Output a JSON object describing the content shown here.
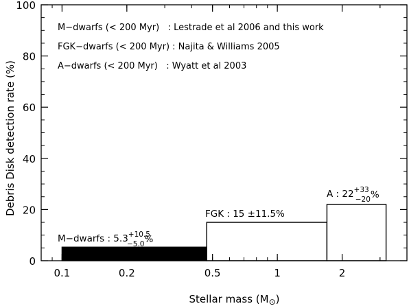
{
  "chart_data": {
    "type": "bar",
    "x_scale": "log",
    "xlim": [
      0.08,
      4.0
    ],
    "ylim": [
      0,
      100
    ],
    "xlabel": "Stellar mass (M",
    "xlabel_symbol": "⊙",
    "xlabel_end": ")",
    "ylabel": "Debris Disk detection rate (%)",
    "x_ticks": [
      0.1,
      0.2,
      0.5,
      1,
      2
    ],
    "x_tick_labels": [
      "0.1",
      "0.2",
      "0.5",
      "1",
      "2"
    ],
    "y_ticks": [
      0,
      20,
      40,
      60,
      80,
      100
    ],
    "y_tick_labels": [
      "0",
      "20",
      "40",
      "60",
      "80",
      "100"
    ],
    "bars": [
      {
        "name": "M-dwarfs",
        "x_start": 0.1,
        "x_end": 0.47,
        "value": 5.3,
        "err_plus": 10.5,
        "err_minus": 5.0,
        "fill": "#000000",
        "label_main": "M−dwarfs : 5.3",
        "label_sup": "+10.5",
        "label_sub": "−5.0",
        "label_end": "%"
      },
      {
        "name": "FGK",
        "x_start": 0.47,
        "x_end": 1.7,
        "value": 15,
        "err": 11.5,
        "fill": "#ffffff",
        "label_main": "FGK : 15 ±11.5%"
      },
      {
        "name": "A",
        "x_start": 1.7,
        "x_end": 3.2,
        "value": 22,
        "err_plus": 33,
        "err_minus": 20,
        "fill": "#ffffff",
        "label_main": "A : 22",
        "label_sup": "+33",
        "label_sub": "−20",
        "label_end": "%"
      }
    ],
    "notes": [
      "M−dwarfs (< 200 Myr)   : Lestrade et al 2006 and this work",
      "FGK−dwarfs (< 200 Myr) : Najita & Williams 2005",
      "A−dwarfs (< 200 Myr)   : Wyatt et al 2003"
    ],
    "grid": false,
    "legend": "none"
  }
}
